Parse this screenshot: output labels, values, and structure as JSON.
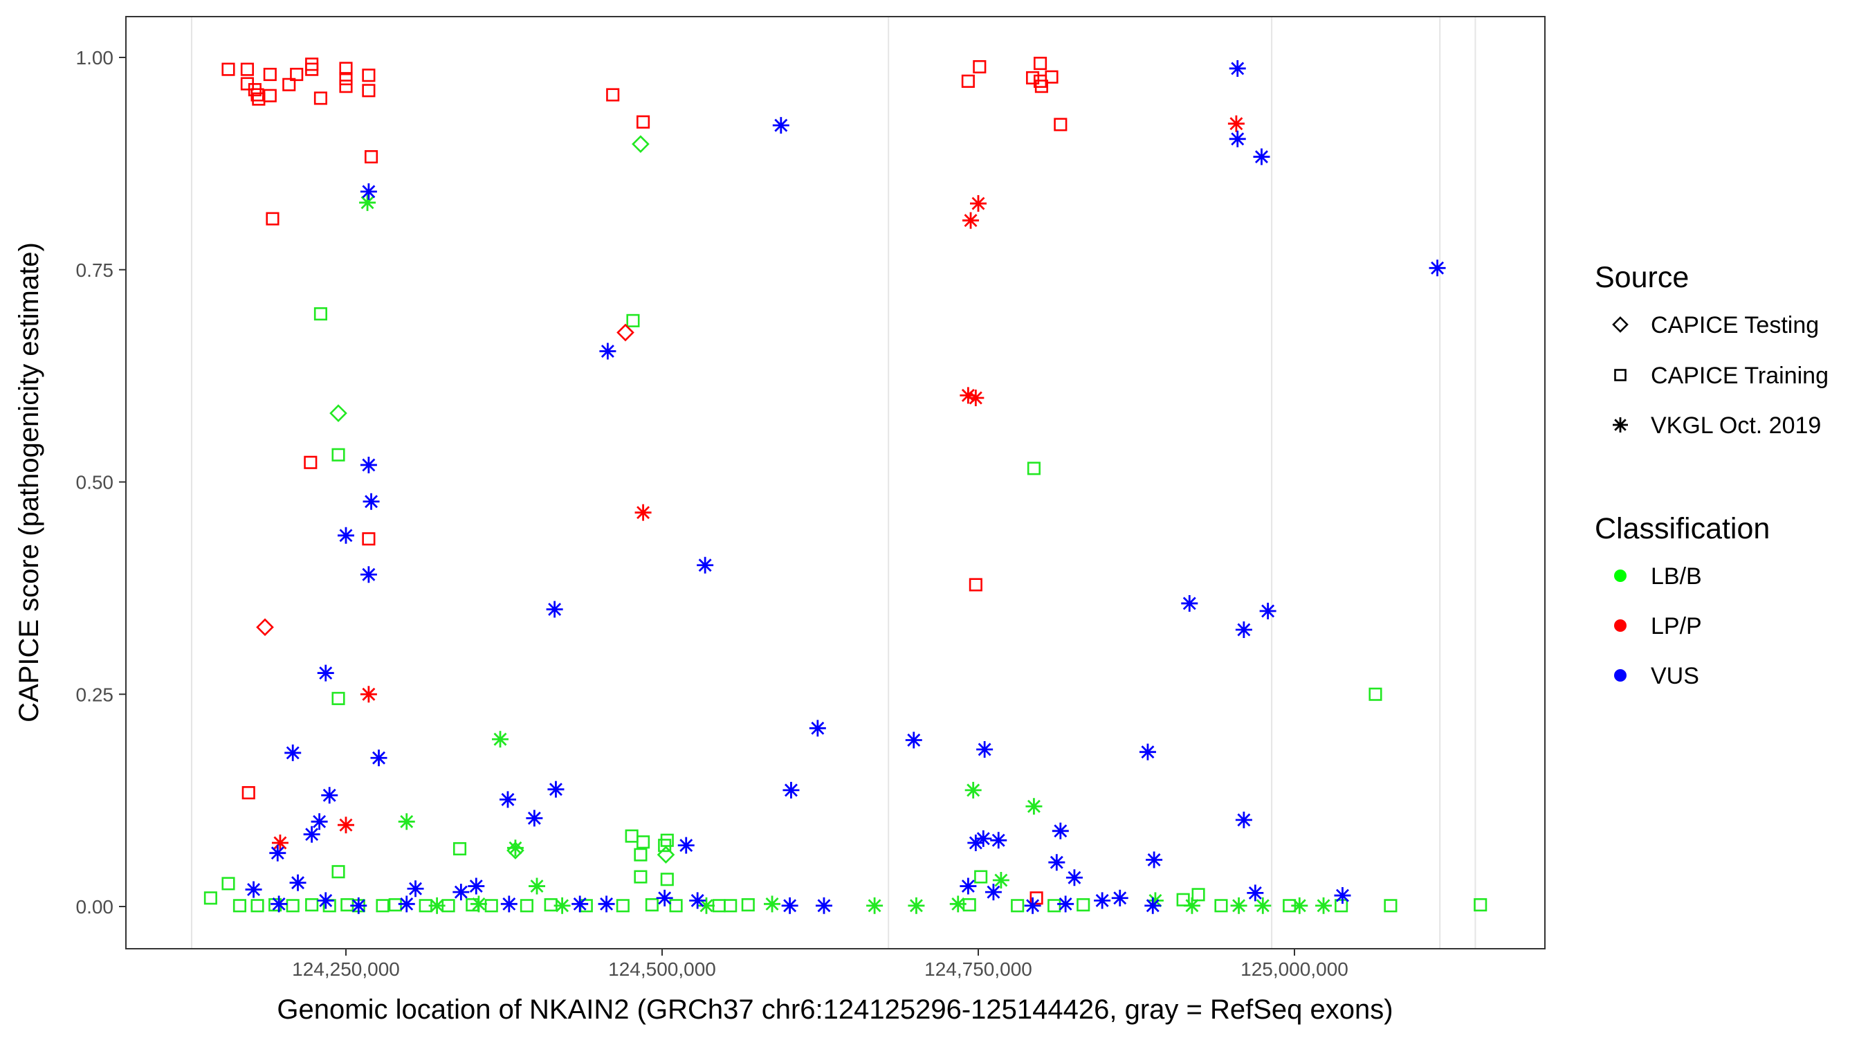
{
  "chart_data": {
    "type": "scatter",
    "title": "",
    "xlabel": "Genomic location of NKAIN2 (GRCh37 chr6:124125296-125144426, gray = RefSeq exons)",
    "ylabel": "CAPICE score (pathogenicity estimate)",
    "xlim": [
      124090000,
      125170000
    ],
    "ylim": [
      -0.05,
      1.05
    ],
    "x_ticks": [
      124250000,
      124500000,
      124750000,
      125000000
    ],
    "x_tick_labels": [
      "124,250,000",
      "124,500,000",
      "124,750,000",
      "125,000,000"
    ],
    "y_ticks": [
      0,
      0.25,
      0.5,
      0.75,
      1.0
    ],
    "y_tick_labels": [
      "0.00",
      "0.25",
      "0.50",
      "0.75",
      "1.00"
    ],
    "grid": false,
    "exons": [
      124128000,
      124679000,
      124982000,
      125115000,
      125143000
    ],
    "legend": {
      "placement": "right",
      "source_title": "Source",
      "source_items": [
        {
          "label": "CAPICE Testing",
          "shape": "diamond"
        },
        {
          "label": "CAPICE Training",
          "shape": "square"
        },
        {
          "label": "VKGL Oct. 2019",
          "shape": "asterisk"
        }
      ],
      "class_title": "Classification",
      "class_items": [
        {
          "label": "LB/B",
          "color": "#00ff00"
        },
        {
          "label": "LP/P",
          "color": "#ff0000"
        },
        {
          "label": "VUS",
          "color": "#0000ff"
        }
      ]
    },
    "colors": {
      "LB/B": "#22e822",
      "LP/P": "#ff0000",
      "VUS": "#0000ff",
      "exon": "#e5e5e5"
    },
    "series": [
      {
        "source": "CAPICE Training",
        "classification": "LB/B",
        "points": [
          [
            124230000,
            0.698
          ],
          [
            124477000,
            0.69
          ],
          [
            124244000,
            0.532
          ],
          [
            124794000,
            0.516
          ],
          [
            124244000,
            0.245
          ],
          [
            125064000,
            0.25
          ],
          [
            124340000,
            0.068
          ],
          [
            124476000,
            0.083
          ],
          [
            124485000,
            0.076
          ],
          [
            124504000,
            0.078
          ],
          [
            124502000,
            0.072
          ],
          [
            124483000,
            0.061
          ],
          [
            124244000,
            0.041
          ],
          [
            124483000,
            0.035
          ],
          [
            124504000,
            0.032
          ],
          [
            124752000,
            0.035
          ],
          [
            124143000,
            0.01
          ],
          [
            124157000,
            0.027
          ],
          [
            124924000,
            0.014
          ],
          [
            124912000,
            0.008
          ],
          [
            124166000,
            0.001
          ],
          [
            124180000,
            0.001
          ],
          [
            124194000,
            0.002
          ],
          [
            124208000,
            0.001
          ],
          [
            124223000,
            0.002
          ],
          [
            124237000,
            0.001
          ],
          [
            124251000,
            0.002
          ],
          [
            124260000,
            0.001
          ],
          [
            124279000,
            0.001
          ],
          [
            124289000,
            0.002
          ],
          [
            124313000,
            0.001
          ],
          [
            124331000,
            0.001
          ],
          [
            124350000,
            0.002
          ],
          [
            124365000,
            0.001
          ],
          [
            124393000,
            0.001
          ],
          [
            124412000,
            0.002
          ],
          [
            124440000,
            0.001
          ],
          [
            124469000,
            0.001
          ],
          [
            124492000,
            0.002
          ],
          [
            124511000,
            0.001
          ],
          [
            124545000,
            0.001
          ],
          [
            124554000,
            0.001
          ],
          [
            124568000,
            0.002
          ],
          [
            124743000,
            0.002
          ],
          [
            124781000,
            0.001
          ],
          [
            124810000,
            0.001
          ],
          [
            124833000,
            0.002
          ],
          [
            124942000,
            0.001
          ],
          [
            124996000,
            0.001
          ],
          [
            125037000,
            0.001
          ],
          [
            125076000,
            0.001
          ],
          [
            125147000,
            0.002
          ]
        ]
      },
      {
        "source": "CAPICE Testing",
        "classification": "LB/B",
        "points": [
          [
            124483000,
            0.898
          ],
          [
            124244000,
            0.581
          ],
          [
            124503000,
            0.061
          ],
          [
            124384000,
            0.066
          ]
        ]
      },
      {
        "source": "VKGL Oct. 2019",
        "classification": "LB/B",
        "points": [
          [
            124267000,
            0.829
          ],
          [
            124372000,
            0.197
          ],
          [
            124298000,
            0.1
          ],
          [
            124384000,
            0.069
          ],
          [
            124746000,
            0.137
          ],
          [
            124794000,
            0.118
          ],
          [
            124401000,
            0.024
          ],
          [
            124768000,
            0.031
          ],
          [
            124322000,
            0.001
          ],
          [
            124355000,
            0.003
          ],
          [
            124421000,
            0.001
          ],
          [
            124535000,
            0.001
          ],
          [
            124587000,
            0.003
          ],
          [
            124668000,
            0.001
          ],
          [
            124701000,
            0.001
          ],
          [
            124734000,
            0.003
          ],
          [
            124890000,
            0.007
          ],
          [
            124919000,
            0.001
          ],
          [
            124956000,
            0.001
          ],
          [
            124975000,
            0.001
          ],
          [
            125004000,
            0.001
          ],
          [
            125023000,
            0.001
          ]
        ]
      },
      {
        "source": "CAPICE Training",
        "classification": "LP/P",
        "points": [
          [
            124157000,
            0.986
          ],
          [
            124172000,
            0.986
          ],
          [
            124172000,
            0.969
          ],
          [
            124178000,
            0.962
          ],
          [
            124180000,
            0.956
          ],
          [
            124181000,
            0.951
          ],
          [
            124190000,
            0.98
          ],
          [
            124190000,
            0.955
          ],
          [
            124205000,
            0.968
          ],
          [
            124211000,
            0.98
          ],
          [
            124223000,
            0.992
          ],
          [
            124223000,
            0.986
          ],
          [
            124230000,
            0.952
          ],
          [
            124250000,
            0.987
          ],
          [
            124250000,
            0.975
          ],
          [
            124250000,
            0.966
          ],
          [
            124268000,
            0.979
          ],
          [
            124268000,
            0.961
          ],
          [
            124270000,
            0.883
          ],
          [
            124192000,
            0.81
          ],
          [
            124461000,
            0.956
          ],
          [
            124485000,
            0.924
          ],
          [
            124222000,
            0.523
          ],
          [
            124268000,
            0.433
          ],
          [
            124173000,
            0.134
          ],
          [
            124742000,
            0.972
          ],
          [
            124751000,
            0.989
          ],
          [
            124793000,
            0.976
          ],
          [
            124799000,
            0.993
          ],
          [
            124799000,
            0.972
          ],
          [
            124800000,
            0.966
          ],
          [
            124808000,
            0.977
          ],
          [
            124815000,
            0.921
          ],
          [
            124748000,
            0.379
          ],
          [
            124796000,
            0.01
          ]
        ]
      },
      {
        "source": "CAPICE Testing",
        "classification": "LP/P",
        "points": [
          [
            124186000,
            0.329
          ],
          [
            124471000,
            0.676
          ]
        ]
      },
      {
        "source": "VKGL Oct. 2019",
        "classification": "LP/P",
        "points": [
          [
            124268000,
            0.25
          ],
          [
            124198000,
            0.075
          ],
          [
            124250000,
            0.096
          ],
          [
            124485000,
            0.464
          ],
          [
            124750000,
            0.828
          ],
          [
            124744000,
            0.808
          ],
          [
            124742000,
            0.602
          ],
          [
            124748000,
            0.599
          ],
          [
            124954000,
            0.922
          ]
        ]
      },
      {
        "source": "VKGL Oct. 2019",
        "classification": "VUS",
        "points": [
          [
            124268000,
            0.842
          ],
          [
            124268000,
            0.52
          ],
          [
            124270000,
            0.477
          ],
          [
            124250000,
            0.437
          ],
          [
            124268000,
            0.391
          ],
          [
            124234000,
            0.275
          ],
          [
            124208000,
            0.181
          ],
          [
            124276000,
            0.175
          ],
          [
            124237000,
            0.131
          ],
          [
            124196000,
            0.063
          ],
          [
            124229000,
            0.1
          ],
          [
            124223000,
            0.085
          ],
          [
            124212000,
            0.028
          ],
          [
            124177000,
            0.02
          ],
          [
            124594000,
            0.92
          ],
          [
            124457000,
            0.654
          ],
          [
            124534000,
            0.402
          ],
          [
            124415000,
            0.35
          ],
          [
            124623000,
            0.21
          ],
          [
            124602000,
            0.137
          ],
          [
            124416000,
            0.138
          ],
          [
            124378000,
            0.126
          ],
          [
            124399000,
            0.104
          ],
          [
            124519000,
            0.072
          ],
          [
            124305000,
            0.021
          ],
          [
            124699000,
            0.196
          ],
          [
            124755000,
            0.185
          ],
          [
            124748000,
            0.075
          ],
          [
            124754000,
            0.08
          ],
          [
            124766000,
            0.078
          ],
          [
            124815000,
            0.089
          ],
          [
            124812000,
            0.052
          ],
          [
            124826000,
            0.034
          ],
          [
            124955000,
            0.987
          ],
          [
            124955000,
            0.904
          ],
          [
            124974000,
            0.883
          ],
          [
            125113000,
            0.752
          ],
          [
            124917000,
            0.357
          ],
          [
            124960000,
            0.326
          ],
          [
            124979000,
            0.348
          ],
          [
            124884000,
            0.182
          ],
          [
            124960000,
            0.102
          ],
          [
            124889000,
            0.055
          ],
          [
            124969000,
            0.016
          ],
          [
            125038000,
            0.013
          ],
          [
            124197000,
            0.003
          ],
          [
            124234000,
            0.007
          ],
          [
            124260000,
            0.001
          ],
          [
            124298000,
            0.003
          ],
          [
            124341000,
            0.017
          ],
          [
            124353000,
            0.024
          ],
          [
            124379000,
            0.003
          ],
          [
            124435000,
            0.003
          ],
          [
            124456000,
            0.003
          ],
          [
            124502000,
            0.01
          ],
          [
            124528000,
            0.007
          ],
          [
            124601000,
            0.001
          ],
          [
            124628000,
            0.001
          ],
          [
            124742000,
            0.024
          ],
          [
            124762000,
            0.017
          ],
          [
            124793000,
            0.001
          ],
          [
            124819000,
            0.003
          ],
          [
            124848000,
            0.007
          ],
          [
            124862000,
            0.01
          ],
          [
            124888000,
            0.001
          ]
        ]
      }
    ]
  }
}
